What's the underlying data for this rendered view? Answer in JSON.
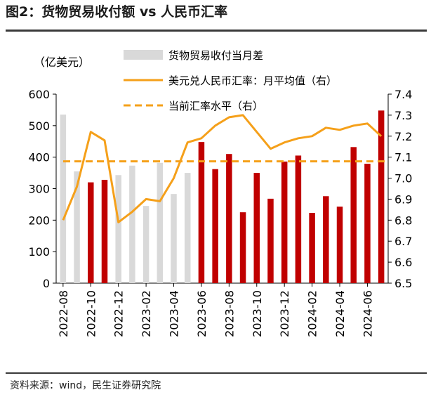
{
  "header": {
    "title": "图2：货物贸易收付额 vs 人民币汇率"
  },
  "footer": {
    "source": "资料来源：wind，民生证券研究院"
  },
  "colors": {
    "bar_dark": "#C00000",
    "bar_light": "#D9D9D9",
    "line": "#F5A01A"
  },
  "chart_data": {
    "type": "bar",
    "ylabel_left": "（亿美元）",
    "legend": {
      "placement": "top-right",
      "bars": "货物贸易收付当月差",
      "line": "美元兑人民币汇率：月平均值（右）",
      "dashed": "当前汇率水平（右）"
    },
    "y_left": {
      "min": 0,
      "max": 600,
      "ticks": [
        "0",
        "100",
        "200",
        "300",
        "400",
        "500",
        "600"
      ]
    },
    "y_right": {
      "min": 6.5,
      "max": 7.4,
      "ticks": [
        "6.5",
        "6.6",
        "6.7",
        "6.8",
        "6.9",
        "7.0",
        "7.1",
        "7.2",
        "7.3",
        "7.4"
      ]
    },
    "x_tick_labels": [
      "2022-08",
      "2022-10",
      "2022-12",
      "2023-02",
      "2023-04",
      "2023-06",
      "2023-08",
      "2023-10",
      "2023-12",
      "2024-02",
      "2024-04",
      "2024-06"
    ],
    "categories": [
      "2022-08",
      "2022-09",
      "2022-10",
      "2022-11",
      "2022-12",
      "2023-01",
      "2023-02",
      "2023-03",
      "2023-04",
      "2023-05",
      "2023-06",
      "2023-07",
      "2023-08",
      "2023-09",
      "2023-10",
      "2023-11",
      "2023-12",
      "2024-01",
      "2024-02",
      "2024-03",
      "2024-04",
      "2024-05",
      "2024-06",
      "2024-07"
    ],
    "bar_values": [
      535,
      355,
      320,
      328,
      343,
      373,
      245,
      382,
      283,
      350,
      448,
      362,
      410,
      225,
      350,
      268,
      386,
      405,
      223,
      276,
      243,
      432,
      379,
      548
    ],
    "bar_highlight": [
      false,
      false,
      true,
      true,
      false,
      false,
      false,
      false,
      false,
      false,
      true,
      true,
      true,
      true,
      true,
      true,
      true,
      true,
      true,
      true,
      true,
      true,
      true,
      true
    ],
    "line_values": [
      6.8,
      6.96,
      7.22,
      7.18,
      6.79,
      6.84,
      6.9,
      6.89,
      7.0,
      7.17,
      7.19,
      7.25,
      7.29,
      7.3,
      7.22,
      7.14,
      7.17,
      7.19,
      7.2,
      7.24,
      7.23,
      7.25,
      7.26,
      7.2
    ],
    "current_rate": 7.08
  }
}
